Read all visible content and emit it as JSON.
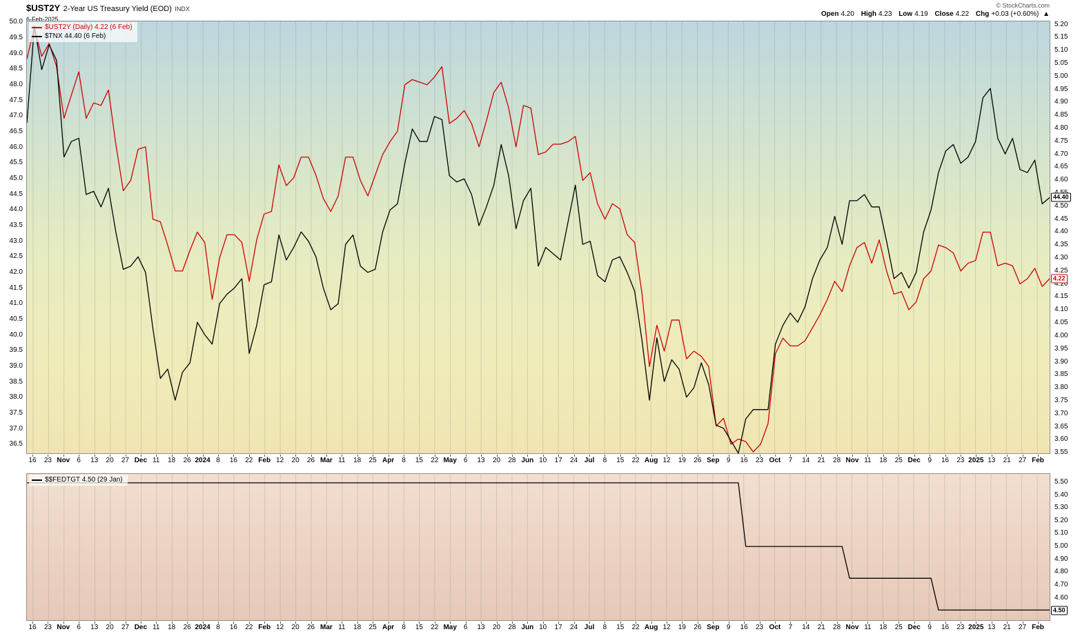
{
  "header": {
    "symbol": "$UST2Y",
    "title": "2-Year US Treasury Yield (EOD)",
    "exchange": "INDX",
    "date": "6-Feb-2025",
    "copyright": "© StockCharts.com",
    "quote": {
      "open_label": "Open",
      "open": "4.20",
      "high_label": "High",
      "high": "4.23",
      "low_label": "Low",
      "low": "4.19",
      "close_label": "Close",
      "close": "4.22",
      "chg_label": "Chg",
      "chg": "+0.03 (+0.60%)",
      "direction": "▲"
    }
  },
  "main_panel": {
    "legend": [
      {
        "label": "$UST2Y (Daily) 4.22 (6 Feb)",
        "color": "#cc0000"
      },
      {
        "label": "$TNX 44.40 (6 Feb)",
        "color": "#000000"
      }
    ],
    "end_labels": [
      {
        "text": "44.40",
        "value": 44.4,
        "axis": "left",
        "color": "#000000"
      },
      {
        "text": "4.22",
        "value": 4.22,
        "axis": "right",
        "color": "#cc0000"
      }
    ]
  },
  "lower_panel": {
    "legend": [
      {
        "label": "$$FEDTGT 4.50 (29 Jan)",
        "color": "#000000"
      }
    ],
    "end_labels": [
      {
        "text": "4.50",
        "value": 4.5,
        "color": "#000000"
      }
    ]
  },
  "chart_data": [
    {
      "type": "line",
      "title": "$UST2Y 2-Year US Treasury Yield (EOD) INDX",
      "grid": "weekly-vertical",
      "legend_position": "top-left",
      "x_tick_labels": [
        "16",
        "23",
        "Nov",
        "6",
        "13",
        "20",
        "27",
        "Dec",
        "11",
        "18",
        "26",
        "2024",
        "8",
        "16",
        "22",
        "Feb",
        "12",
        "20",
        "26",
        "Mar",
        "11",
        "18",
        "25",
        "Apr",
        "8",
        "15",
        "22",
        "May",
        "6",
        "13",
        "20",
        "28",
        "Jun",
        "10",
        "17",
        "24",
        "Jul",
        "8",
        "15",
        "22",
        "Aug",
        "12",
        "19",
        "26",
        "Sep",
        "9",
        "16",
        "23",
        "Oct",
        "7",
        "14",
        "21",
        "28",
        "Nov",
        "11",
        "18",
        "25",
        "Dec",
        "9",
        "16",
        "23",
        "2025",
        "13",
        "21",
        "27",
        "Feb"
      ],
      "left_axis": {
        "range": [
          36.2,
          50.05
        ],
        "ticks": [
          "50.0",
          "49.5",
          "49.0",
          "48.5",
          "48.0",
          "47.5",
          "47.0",
          "46.5",
          "46.0",
          "45.5",
          "45.0",
          "44.5",
          "44.0",
          "43.5",
          "43.0",
          "42.5",
          "42.0",
          "41.5",
          "41.0",
          "40.5",
          "40.0",
          "39.5",
          "39.0",
          "38.5",
          "38.0",
          "37.5",
          "37.0",
          "36.5"
        ]
      },
      "right_axis": {
        "range": [
          3.545,
          5.215
        ],
        "ticks": [
          "5.20",
          "5.15",
          "5.10",
          "5.05",
          "5.00",
          "4.95",
          "4.90",
          "4.85",
          "4.80",
          "4.75",
          "4.70",
          "4.65",
          "4.60",
          "4.55",
          "4.50",
          "4.45",
          "4.40",
          "4.35",
          "4.30",
          "4.25",
          "4.20",
          "4.15",
          "4.10",
          "4.05",
          "4.00",
          "3.95",
          "3.90",
          "3.85",
          "3.80",
          "3.75",
          "3.70",
          "3.65",
          "3.60",
          "3.55"
        ]
      },
      "series": [
        {
          "name": "$UST2Y (Daily)",
          "color": "#cc0000",
          "axis": "right",
          "last": 4.22,
          "values": [
            5.07,
            5.19,
            5.08,
            5.13,
            5.04,
            4.84,
            4.93,
            5.02,
            4.84,
            4.9,
            4.89,
            4.95,
            4.74,
            4.56,
            4.6,
            4.72,
            4.73,
            4.45,
            4.44,
            4.35,
            4.25,
            4.25,
            4.33,
            4.4,
            4.36,
            4.14,
            4.3,
            4.39,
            4.39,
            4.36,
            4.21,
            4.37,
            4.47,
            4.48,
            4.66,
            4.58,
            4.61,
            4.69,
            4.69,
            4.62,
            4.53,
            4.48,
            4.54,
            4.69,
            4.69,
            4.6,
            4.54,
            4.62,
            4.7,
            4.75,
            4.79,
            4.97,
            4.99,
            4.98,
            4.97,
            5.0,
            5.04,
            4.82,
            4.84,
            4.87,
            4.82,
            4.73,
            4.83,
            4.94,
            4.98,
            4.88,
            4.73,
            4.89,
            4.88,
            4.7,
            4.71,
            4.74,
            4.74,
            4.75,
            4.77,
            4.6,
            4.63,
            4.51,
            4.45,
            4.51,
            4.49,
            4.39,
            4.36,
            4.16,
            3.88,
            4.04,
            3.94,
            4.06,
            4.06,
            3.91,
            3.94,
            3.92,
            3.88,
            3.65,
            3.68,
            3.58,
            3.6,
            3.59,
            3.55,
            3.58,
            3.66,
            3.93,
            3.99,
            3.96,
            3.96,
            3.98,
            4.03,
            4.08,
            4.14,
            4.21,
            4.17,
            4.27,
            4.34,
            4.36,
            4.28,
            4.37,
            4.25,
            4.16,
            4.17,
            4.1,
            4.13,
            4.22,
            4.25,
            4.35,
            4.34,
            4.32,
            4.25,
            4.28,
            4.29,
            4.4,
            4.4,
            4.27,
            4.28,
            4.27,
            4.2,
            4.22,
            4.26,
            4.19,
            4.22
          ]
        },
        {
          "name": "$TNX",
          "color": "#000000",
          "axis": "left",
          "last": 44.4,
          "values": [
            46.8,
            49.9,
            48.5,
            49.3,
            48.8,
            45.7,
            46.2,
            46.3,
            44.5,
            44.6,
            44.1,
            44.7,
            43.3,
            42.1,
            42.2,
            42.5,
            42.0,
            40.2,
            38.6,
            38.9,
            37.9,
            38.8,
            39.1,
            40.4,
            40.0,
            39.7,
            41.0,
            41.3,
            41.5,
            41.8,
            39.4,
            40.3,
            41.6,
            41.7,
            43.2,
            42.4,
            42.8,
            43.3,
            43.0,
            42.5,
            41.5,
            40.8,
            41.0,
            42.9,
            43.2,
            42.2,
            42.0,
            42.1,
            43.3,
            44.0,
            44.2,
            45.5,
            46.6,
            46.2,
            46.2,
            47.0,
            46.9,
            45.1,
            44.9,
            45.0,
            44.5,
            43.5,
            44.1,
            44.8,
            46.1,
            45.1,
            43.4,
            44.3,
            44.7,
            42.2,
            42.8,
            42.6,
            42.4,
            43.6,
            44.8,
            42.9,
            43.0,
            41.9,
            41.7,
            42.4,
            42.5,
            42.0,
            41.4,
            39.8,
            37.9,
            39.9,
            38.5,
            39.2,
            38.9,
            38.0,
            38.3,
            39.1,
            38.4,
            37.1,
            37.0,
            36.6,
            36.2,
            37.3,
            37.6,
            37.6,
            37.6,
            39.7,
            40.3,
            40.7,
            40.4,
            40.9,
            41.8,
            42.4,
            42.8,
            43.8,
            42.9,
            44.3,
            44.3,
            44.5,
            44.1,
            44.1,
            43.0,
            41.8,
            42.0,
            41.5,
            42.0,
            43.3,
            44.0,
            45.2,
            45.9,
            46.1,
            45.5,
            45.7,
            46.2,
            47.6,
            47.9,
            46.3,
            45.8,
            46.3,
            45.3,
            45.2,
            45.6,
            44.2,
            44.4
          ]
        }
      ]
    },
    {
      "type": "line",
      "title": "$$FEDTGT 4.50 (29 Jan)",
      "right_axis": {
        "range": [
          4.42,
          5.57
        ],
        "ticks": [
          "5.50",
          "5.40",
          "5.30",
          "5.20",
          "5.10",
          "5.00",
          "4.90",
          "4.80",
          "4.70",
          "4.60",
          "4.50"
        ]
      },
      "series": [
        {
          "name": "$$FEDTGT",
          "color": "#000000",
          "axis": "right",
          "last": 4.5,
          "values": [
            5.5,
            5.5,
            5.5,
            5.5,
            5.5,
            5.5,
            5.5,
            5.5,
            5.5,
            5.5,
            5.5,
            5.5,
            5.5,
            5.5,
            5.5,
            5.5,
            5.5,
            5.5,
            5.5,
            5.5,
            5.5,
            5.5,
            5.5,
            5.5,
            5.5,
            5.5,
            5.5,
            5.5,
            5.5,
            5.5,
            5.5,
            5.5,
            5.5,
            5.5,
            5.5,
            5.5,
            5.5,
            5.5,
            5.5,
            5.5,
            5.5,
            5.5,
            5.5,
            5.5,
            5.5,
            5.5,
            5.5,
            5.5,
            5.5,
            5.5,
            5.5,
            5.5,
            5.5,
            5.5,
            5.5,
            5.5,
            5.5,
            5.5,
            5.5,
            5.5,
            5.5,
            5.5,
            5.5,
            5.5,
            5.5,
            5.5,
            5.5,
            5.5,
            5.5,
            5.5,
            5.5,
            5.5,
            5.5,
            5.5,
            5.5,
            5.5,
            5.5,
            5.5,
            5.5,
            5.5,
            5.5,
            5.5,
            5.5,
            5.5,
            5.5,
            5.5,
            5.5,
            5.5,
            5.5,
            5.5,
            5.5,
            5.5,
            5.5,
            5.5,
            5.5,
            5.5,
            5.5,
            5.0,
            5.0,
            5.0,
            5.0,
            5.0,
            5.0,
            5.0,
            5.0,
            5.0,
            5.0,
            5.0,
            5.0,
            5.0,
            5.0,
            4.75,
            4.75,
            4.75,
            4.75,
            4.75,
            4.75,
            4.75,
            4.75,
            4.75,
            4.75,
            4.75,
            4.75,
            4.5,
            4.5,
            4.5,
            4.5,
            4.5,
            4.5,
            4.5,
            4.5,
            4.5,
            4.5,
            4.5,
            4.5,
            4.5,
            4.5,
            4.5,
            4.5
          ]
        }
      ]
    }
  ]
}
